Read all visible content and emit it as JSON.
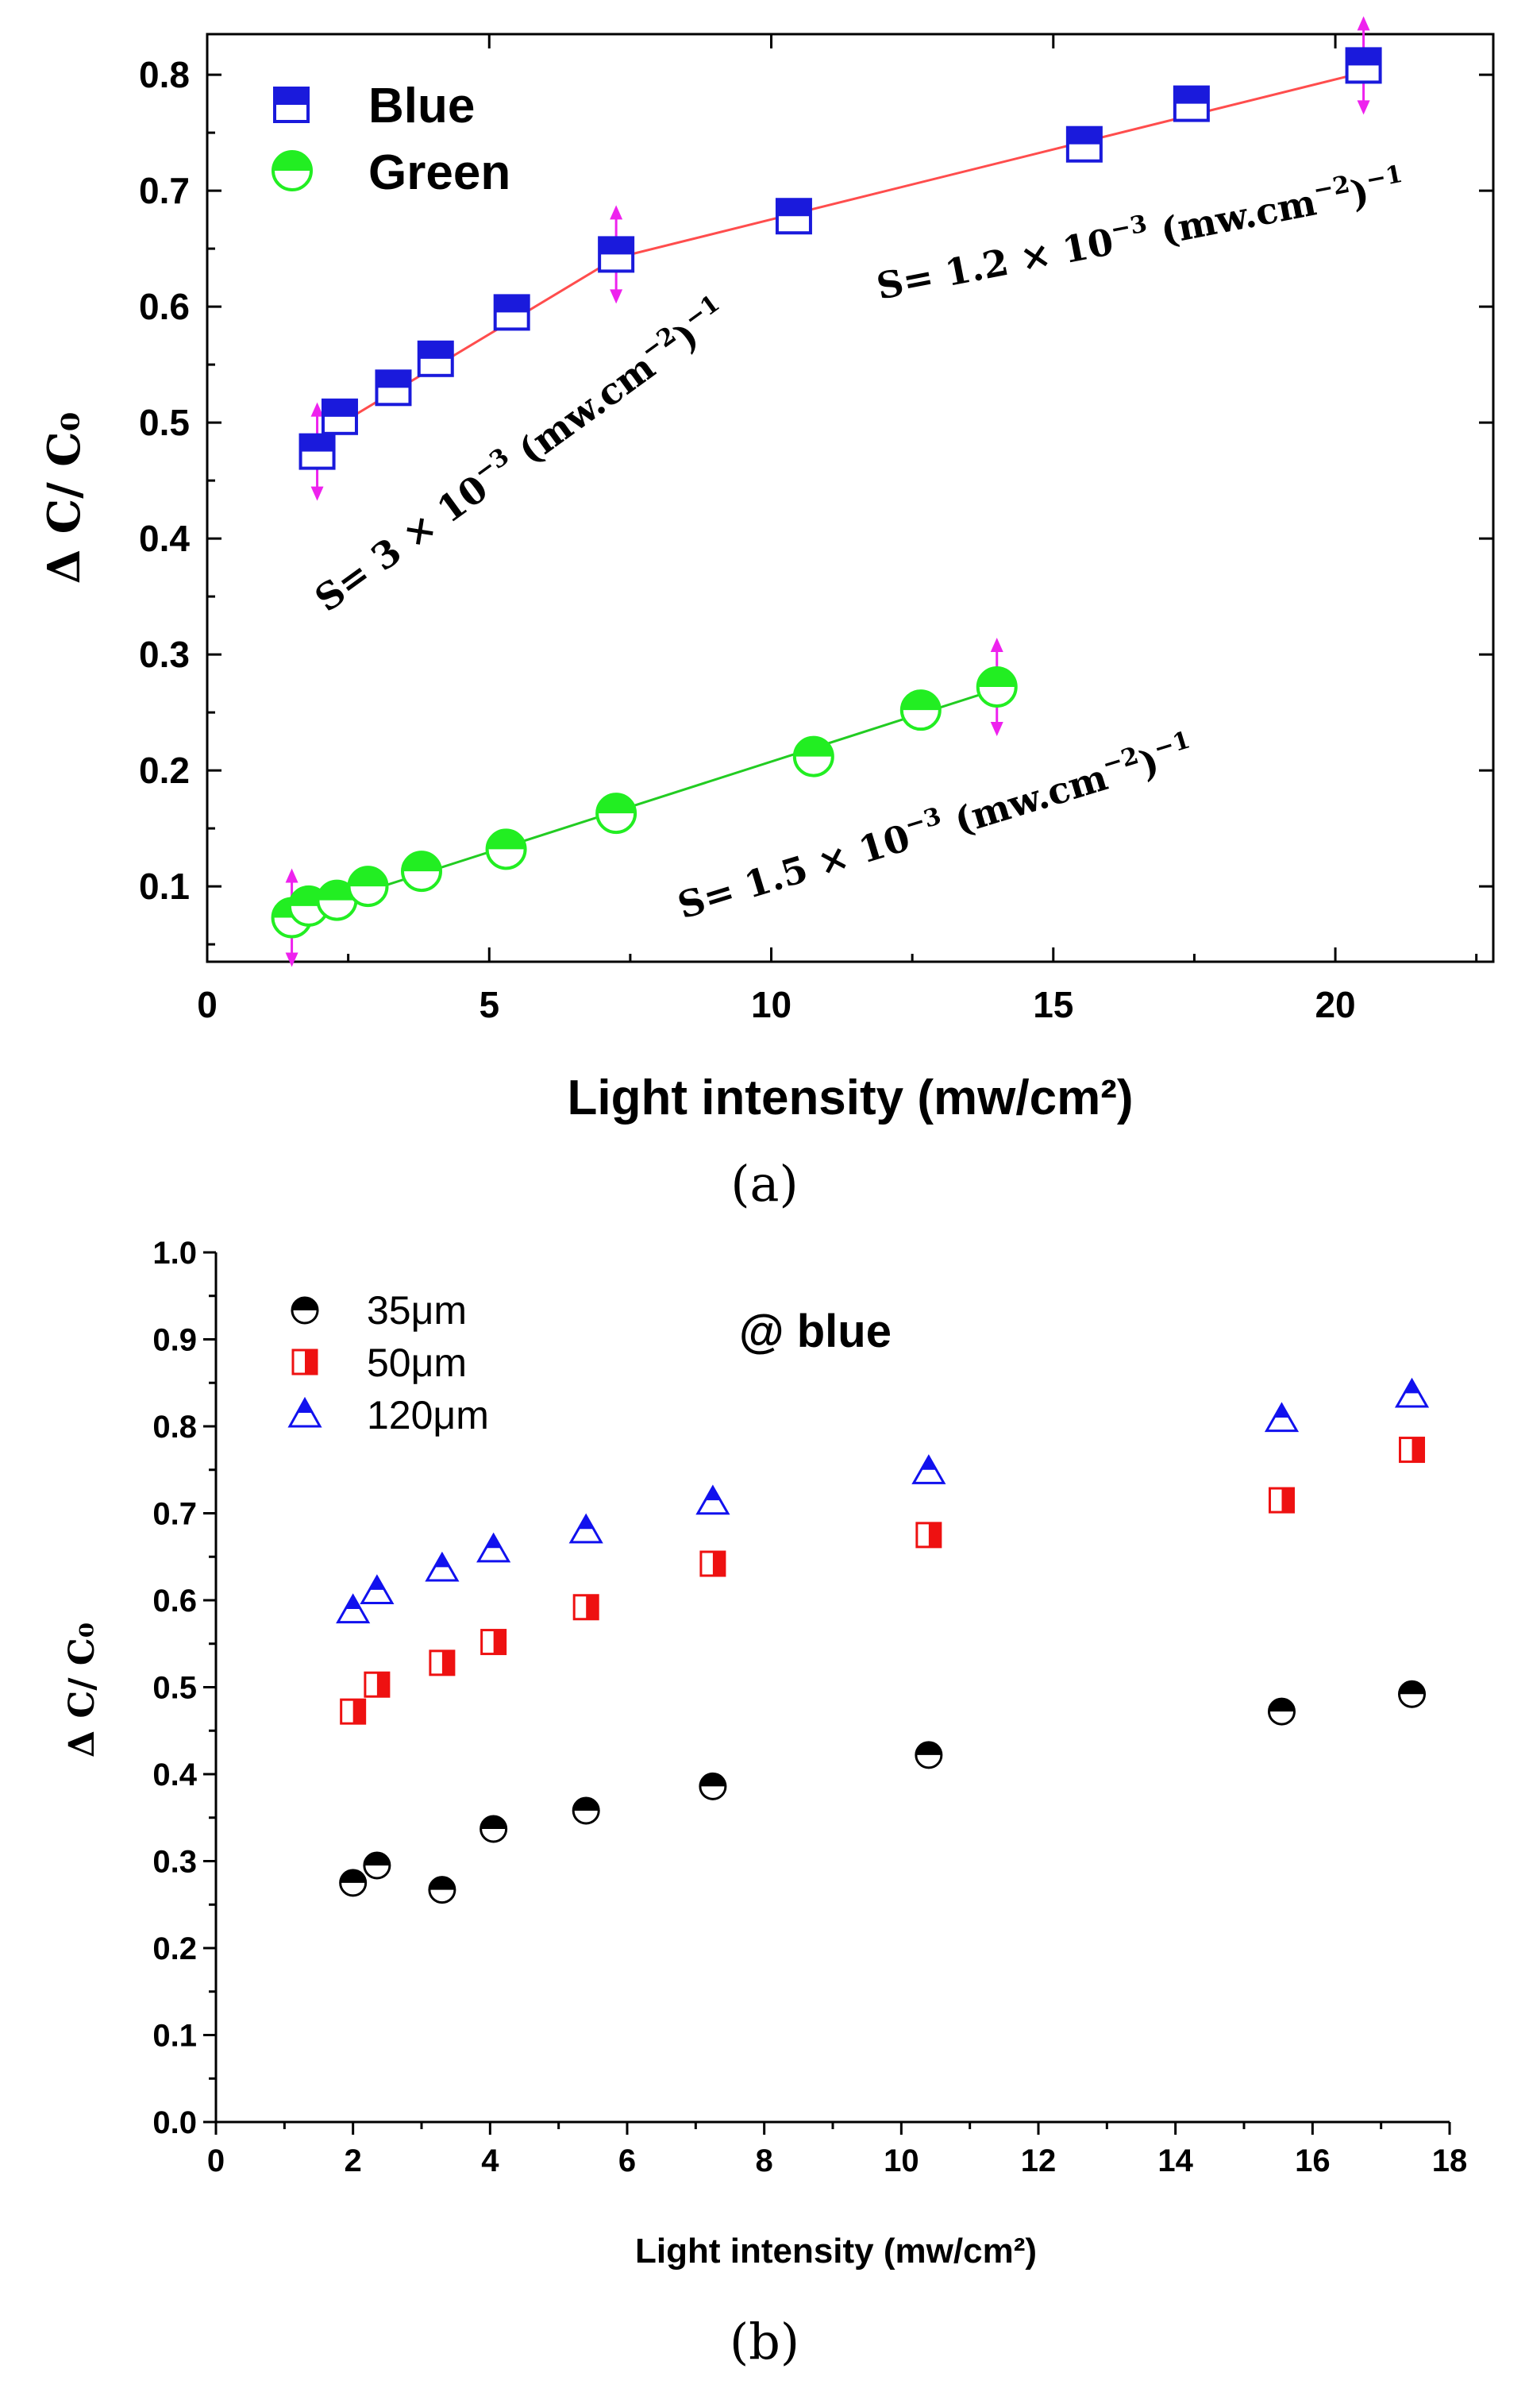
{
  "chart_data": [
    {
      "panel": "(a)",
      "type": "scatter",
      "xlabel": "Light intensity (mw/cm²)",
      "ylabel": "Δ C/ C₀",
      "xlim": [
        0,
        22.8
      ],
      "ylim": [
        0.035,
        0.835
      ],
      "xticks": [
        0,
        5,
        10,
        15,
        20
      ],
      "xtick_labels": [
        "0",
        "5",
        "10",
        "15",
        "20"
      ],
      "yticks": [
        0.1,
        0.2,
        0.3,
        0.4,
        0.5,
        0.6,
        0.7,
        0.8
      ],
      "ytick_labels": [
        "0.1",
        "0.2",
        "0.3",
        "0.4",
        "0.5",
        "0.6",
        "0.7",
        "0.8"
      ],
      "legend_position": "top-left",
      "grid": false,
      "series": [
        {
          "name": "Blue",
          "marker": "half-filled square",
          "color": "#1a1adc",
          "fit_color": "#ff4d4d",
          "x": [
            1.95,
            2.35,
            3.3,
            4.05,
            5.4,
            7.25,
            10.4,
            15.55,
            17.45,
            20.5
          ],
          "y": [
            0.475,
            0.505,
            0.53,
            0.555,
            0.595,
            0.645,
            0.678,
            0.74,
            0.775,
            0.808
          ],
          "fit_x": [
            1.95,
            7.25,
            20.5
          ],
          "fit_y": [
            0.487,
            0.642,
            0.802
          ],
          "error_bars_at": [
            1.95,
            7.25,
            20.5
          ]
        },
        {
          "name": "Green",
          "marker": "half-filled circle",
          "color": "#22ee22",
          "fit_color": "#22cc22",
          "x": [
            1.5,
            1.8,
            2.3,
            2.85,
            3.8,
            5.3,
            7.25,
            10.75,
            12.65,
            14.0
          ],
          "y": [
            0.073,
            0.083,
            0.088,
            0.1,
            0.113,
            0.132,
            0.163,
            0.212,
            0.252,
            0.272
          ],
          "fit_x": [
            1.5,
            14.0
          ],
          "fit_y": [
            0.075,
            0.27
          ],
          "error_bars_at": [
            1.5,
            14.0
          ]
        }
      ],
      "error_bar_color": "#ee22ee",
      "annotations": [
        {
          "text": "S= 3 × 10",
          "sup": "−3",
          "tail": " (mw.cm",
          "sup2": "−2",
          "tail2": ")",
          "sup3": "−1"
        },
        {
          "text": "S= 1.2 × 10",
          "sup": "−3",
          "tail": " (mw.cm",
          "sup2": "−2",
          "tail2": ")",
          "sup3": "−1"
        },
        {
          "text": "S= 1.5 × 10",
          "sup": "−3",
          "tail": " (mw.cm",
          "sup2": "−2",
          "tail2": ")",
          "sup3": "−1"
        }
      ]
    },
    {
      "panel": "(b)",
      "type": "scatter",
      "title": "@ blue",
      "xlabel": "Light intensity (mw/cm²)",
      "ylabel": "Δ C/ C₀",
      "xlim": [
        0,
        18
      ],
      "ylim": [
        0,
        1.0
      ],
      "xticks": [
        0,
        2,
        4,
        6,
        8,
        10,
        12,
        14,
        16,
        18
      ],
      "xtick_labels": [
        "0",
        "2",
        "4",
        "6",
        "8",
        "10",
        "12",
        "14",
        "16",
        "18"
      ],
      "yticks": [
        0,
        0.1,
        0.2,
        0.3,
        0.4,
        0.5,
        0.6,
        0.7,
        0.8,
        0.9,
        1.0
      ],
      "ytick_labels": [
        "0.0",
        "0.1",
        "0.2",
        "0.3",
        "0.4",
        "0.5",
        "0.6",
        "0.7",
        "0.8",
        "0.9",
        "1.0"
      ],
      "legend_position": "top-left",
      "grid": false,
      "series": [
        {
          "name": "35μm",
          "marker": "half-filled circle",
          "color": "#000000",
          "x": [
            2.0,
            2.35,
            3.3,
            4.05,
            5.4,
            7.25,
            10.4,
            15.55,
            17.45
          ],
          "y": [
            0.275,
            0.295,
            0.267,
            0.337,
            0.358,
            0.386,
            0.422,
            0.472,
            0.492
          ]
        },
        {
          "name": "50μm",
          "marker": "half-filled square",
          "color": "#ee1111",
          "x": [
            2.0,
            2.35,
            3.3,
            4.05,
            5.4,
            7.25,
            10.4,
            15.55,
            17.45
          ],
          "y": [
            0.472,
            0.503,
            0.528,
            0.552,
            0.592,
            0.642,
            0.675,
            0.715,
            0.773
          ]
        },
        {
          "name": "120μm",
          "marker": "half-filled triangle",
          "color": "#1111ee",
          "x": [
            2.0,
            2.35,
            3.3,
            4.05,
            5.4,
            7.25,
            10.4,
            15.55,
            17.45
          ],
          "y": [
            0.59,
            0.612,
            0.638,
            0.66,
            0.682,
            0.715,
            0.75,
            0.81,
            0.838
          ]
        }
      ]
    }
  ]
}
